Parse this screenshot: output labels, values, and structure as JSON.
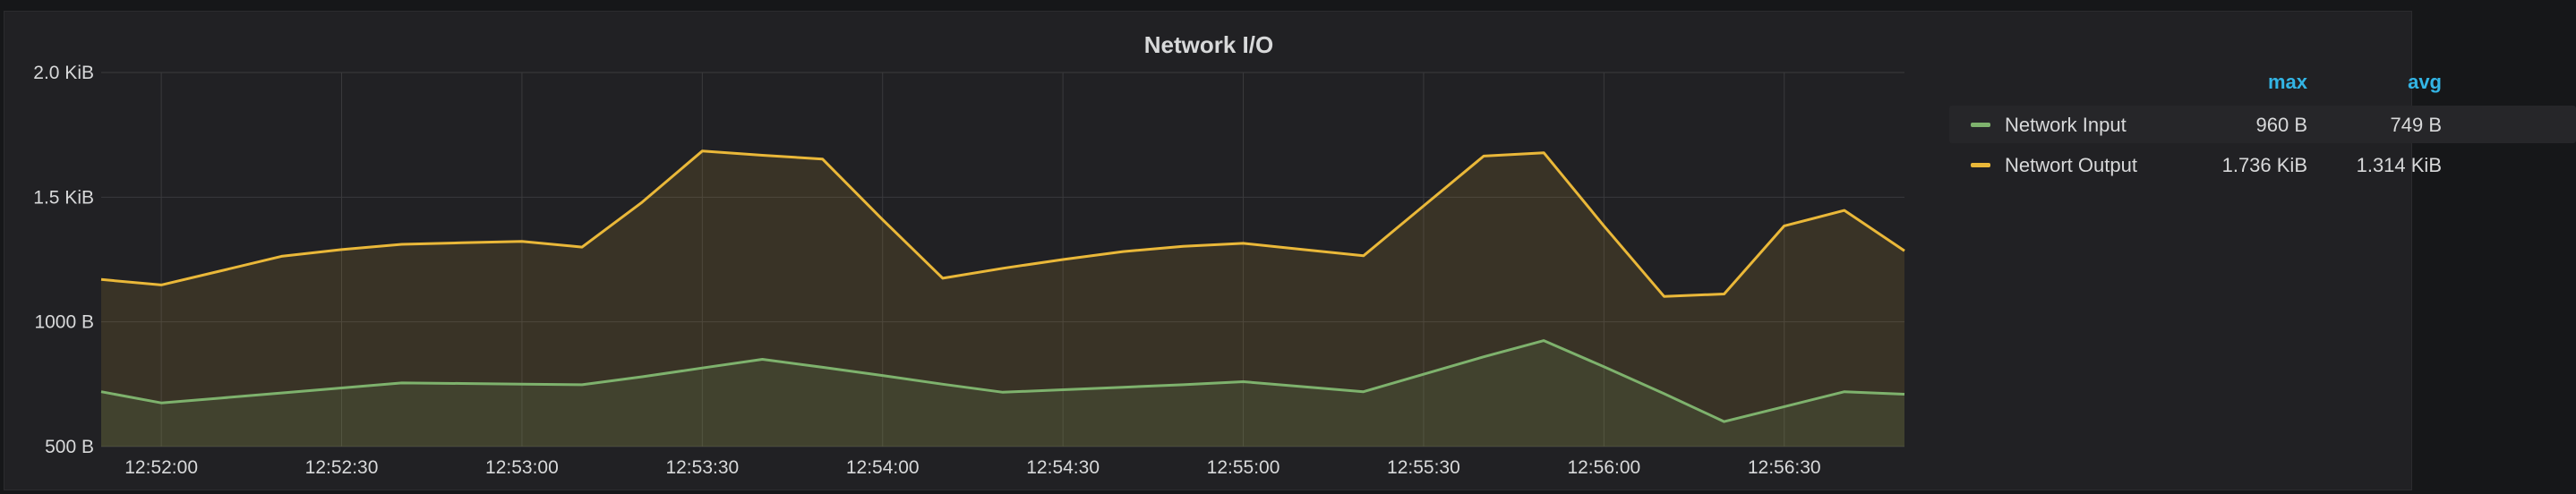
{
  "panel": {
    "title": "Network I/O"
  },
  "legend": {
    "columns": {
      "max": "max",
      "avg": "avg"
    },
    "items": [
      {
        "name": "Network Input",
        "max": "960 B",
        "avg": "749 B",
        "color": "#7eb26d"
      },
      {
        "name": "Networt Output",
        "max": "1.736 KiB",
        "avg": "1.314 KiB",
        "color": "#eab839"
      }
    ]
  },
  "colors": {
    "grid": "#3a3a3d",
    "axis_text": "#d8d9da",
    "input": "#7eb26d",
    "output": "#eab839"
  },
  "chart_data": {
    "type": "area",
    "title": "Network I/O",
    "ylim": [
      500,
      2000
    ],
    "y_ticks": [
      500,
      1000,
      1500,
      2000
    ],
    "y_tick_labels": [
      "500 B",
      "1000 B",
      "1.5 KiB",
      "2.0 KiB"
    ],
    "x_range": [
      "12:51:50",
      "12:56:50"
    ],
    "x_tick_labels": [
      "12:52:00",
      "12:52:30",
      "12:53:00",
      "12:53:30",
      "12:54:00",
      "12:54:30",
      "12:55:00",
      "12:55:30",
      "12:56:00",
      "12:56:30"
    ],
    "x": [
      "12:51:50",
      "12:52:00",
      "12:52:10",
      "12:52:20",
      "12:52:30",
      "12:52:40",
      "12:52:50",
      "12:53:00",
      "12:53:10",
      "12:53:20",
      "12:53:30",
      "12:53:40",
      "12:53:50",
      "12:54:00",
      "12:54:10",
      "12:54:20",
      "12:54:30",
      "12:54:40",
      "12:54:50",
      "12:55:00",
      "12:55:10",
      "12:55:20",
      "12:55:30",
      "12:55:40",
      "12:55:50",
      "12:56:00",
      "12:56:10",
      "12:56:20",
      "12:56:30",
      "12:56:40",
      "12:56:50"
    ],
    "grid": true,
    "legend_position": "right",
    "series": [
      {
        "name": "Network Input",
        "values": [
          720,
          675,
          695,
          715,
          735,
          755,
          753,
          750,
          748,
          780,
          815,
          850,
          818,
          785,
          750,
          718,
          728,
          738,
          748,
          760,
          740,
          720,
          790,
          860,
          925,
          820,
          712,
          600,
          660,
          720,
          710
        ]
      },
      {
        "name": "Networt Output",
        "values": [
          1170,
          1148,
          1205,
          1263,
          1290,
          1311,
          1317,
          1323,
          1300,
          1480,
          1685,
          1668,
          1653,
          1410,
          1175,
          1215,
          1250,
          1282,
          1303,
          1315,
          1290,
          1265,
          1465,
          1665,
          1678,
          1385,
          1102,
          1112,
          1385,
          1447,
          1285
        ]
      }
    ]
  }
}
